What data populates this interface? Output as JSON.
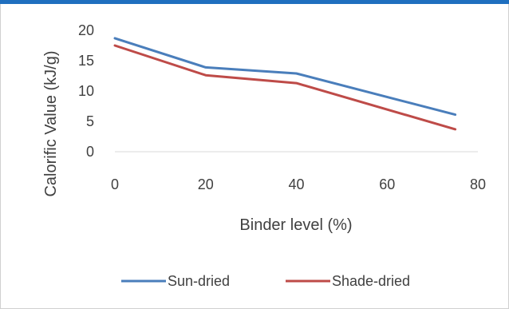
{
  "chart_data": {
    "type": "line",
    "xlabel": "Binder level (%)",
    "ylabel": "Calorific Value (kJ/g)",
    "xlim": [
      0,
      80
    ],
    "ylim": [
      0,
      20
    ],
    "x_ticks": [
      0,
      20,
      40,
      60,
      80
    ],
    "y_ticks": [
      0,
      5,
      10,
      15,
      20
    ],
    "grid": false,
    "legend_position": "bottom",
    "series": [
      {
        "name": "Sun-dried",
        "color": "#4a7ebb",
        "x": [
          0,
          20,
          40,
          75
        ],
        "y": [
          18.7,
          13.9,
          12.9,
          6.1
        ]
      },
      {
        "name": "Shade-dried",
        "color": "#be4b48",
        "x": [
          0,
          20,
          40,
          75
        ],
        "y": [
          17.5,
          12.6,
          11.3,
          3.7
        ]
      }
    ]
  }
}
